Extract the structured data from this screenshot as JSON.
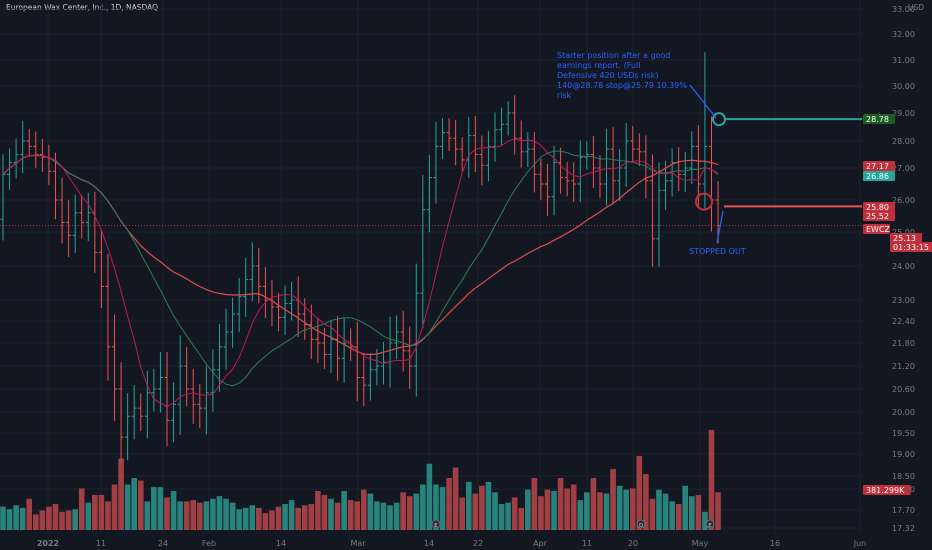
{
  "header": {
    "title": "European Wax Center, Inc., 1D, NASDAQ",
    "currency": "USD"
  },
  "colors": {
    "bg": "#131722",
    "up": "#26a69a",
    "down": "#ef5350",
    "grid": "#1e222d",
    "annotation": "#2962ff",
    "ma_fast": "#c2185b",
    "ma_mid": "#2e7d5b",
    "ma_slow": "#e04b4b"
  },
  "chart_data": {
    "type": "ohlc",
    "y_ticks": [
      "33.00",
      "32.00",
      "31.00",
      "30.00",
      "29.00",
      "28.00",
      "27.00",
      "26.00",
      "25.00",
      "24.00",
      "23.00",
      "22.40",
      "21.80",
      "21.20",
      "20.60",
      "20.00",
      "19.50",
      "19.00",
      "18.50",
      "18.00",
      "17.70",
      "17.32"
    ],
    "x_ticks": [
      "2022",
      "11",
      "24",
      "Feb",
      "14",
      "Mar",
      "14",
      "22",
      "Apr",
      "11",
      "20",
      "May",
      "16",
      "Jun"
    ],
    "price_labels": [
      {
        "text": "28.78",
        "kind": "green"
      },
      {
        "text": "27.17",
        "kind": "red"
      },
      {
        "text": "26.86",
        "kind": "greenfill"
      },
      {
        "text": "25.80",
        "kind": "red"
      },
      {
        "text": "25.52",
        "kind": "red"
      },
      {
        "text": "EWCZ",
        "kind": "red"
      },
      {
        "text": "25.13",
        "kind": "red"
      },
      {
        "text": "01:33:15",
        "kind": "red"
      },
      {
        "text": "381.299K",
        "kind": "red"
      }
    ],
    "annotation_text": "Starter position after a good earnings report. (Full Defensive 420 USDs risk) 140@28.78 stop@25.79 10.39% risk",
    "stopped_text": "STOPPED OUT",
    "entry_price": 28.78,
    "stop_price": 25.8,
    "prices": {
      "start_open": 25.4,
      "closes": [
        26.8,
        27.2,
        27.5,
        28.0,
        27.8,
        27.5,
        27.4,
        26.9,
        26.0,
        25.3,
        24.9,
        25.6,
        25.3,
        25.6,
        24.4,
        23.4,
        21.7,
        20.6,
        19.4,
        19.9,
        20.1,
        19.9,
        20.5,
        20.6,
        20.9,
        19.8,
        20.2,
        21.2,
        20.6,
        20.2,
        20.1,
        20.5,
        21.1,
        21.7,
        22.1,
        22.6,
        23.1,
        23.6,
        24.0,
        23.4,
        23.0,
        22.8,
        22.5,
        22.9,
        23.0,
        22.6,
        22.3,
        21.9,
        21.8,
        21.5,
        21.9,
        21.4,
        21.8,
        21.7,
        20.9,
        20.7,
        21.1,
        21.2,
        21.3,
        21.8,
        22.1,
        21.6,
        21.2,
        23.2,
        25.7,
        26.7,
        27.8,
        28.3,
        28.1,
        27.7,
        27.3,
        28.2,
        27.5,
        27.1,
        27.8,
        28.4,
        28.6,
        29.0,
        28.1,
        27.6,
        27.7,
        26.8,
        26.5,
        26.1,
        27.2,
        26.7,
        26.6,
        26.5,
        27.4,
        27.5,
        27.0,
        26.5,
        27.7,
        26.6,
        27.0,
        28.0,
        27.7,
        27.6,
        26.6,
        24.8,
        26.3,
        26.6,
        27.2,
        26.8,
        27.0,
        27.8,
        26.5,
        27.8,
        26.0,
        25.2
      ]
    },
    "volume_scale_max": 100,
    "volumes": [
      18,
      16,
      19,
      17,
      24,
      12,
      15,
      18,
      20,
      14,
      15,
      16,
      32,
      21,
      27,
      27,
      22,
      35,
      55,
      35,
      40,
      38,
      22,
      33,
      33,
      25,
      30,
      22,
      22,
      23,
      21,
      22,
      24,
      26,
      24,
      21,
      16,
      17,
      19,
      17,
      13,
      15,
      18,
      20,
      23,
      17,
      19,
      20,
      30,
      27,
      24,
      21,
      30,
      23,
      22,
      31,
      28,
      22,
      21,
      19,
      21,
      29,
      26,
      28,
      35,
      51,
      35,
      33,
      40,
      48,
      25,
      37,
      28,
      34,
      37,
      29,
      20,
      21,
      25,
      17,
      31,
      40,
      26,
      31,
      30,
      40,
      32,
      35,
      23,
      29,
      40,
      29,
      28,
      47,
      34,
      31,
      32,
      57,
      43,
      24,
      31,
      28,
      22,
      20,
      34,
      26,
      27,
      14,
      77,
      29
    ]
  }
}
